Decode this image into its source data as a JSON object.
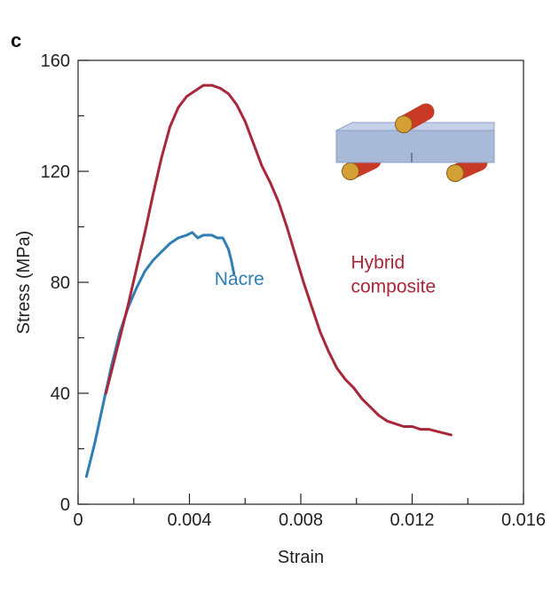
{
  "panel_label": "c",
  "colors": {
    "nacre": "#2f7fb5",
    "hybrid": "#a8283a",
    "axis": "#222222",
    "beam": "#a9b9d8",
    "beam_edge": "#8ea0c6",
    "roller": "#c83a26",
    "roller_end": "#d4a035"
  },
  "inset": {
    "icon": "three-point-bend-test-icon"
  },
  "chart_data": {
    "type": "line",
    "xlabel": "Strain",
    "ylabel": "Stress (MPa)",
    "xlim": [
      0,
      0.016
    ],
    "ylim": [
      0,
      160
    ],
    "x_ticks": [
      0,
      0.004,
      0.008,
      0.012,
      0.016
    ],
    "x_tick_labels": [
      "0",
      "0.004",
      "0.008",
      "0.012",
      "0.016"
    ],
    "y_ticks": [
      0,
      40,
      80,
      120,
      160
    ],
    "y_tick_labels": [
      "0",
      "40",
      "80",
      "120",
      "160"
    ],
    "grid": false,
    "series": [
      {
        "name": "Nacre",
        "color": "#2f7fb5",
        "label_anchor": [
          0.0049,
          79
        ],
        "points": [
          [
            0.0003,
            10
          ],
          [
            0.0006,
            22
          ],
          [
            0.0009,
            36
          ],
          [
            0.0012,
            50
          ],
          [
            0.0015,
            62
          ],
          [
            0.0018,
            71
          ],
          [
            0.0021,
            78
          ],
          [
            0.0024,
            84
          ],
          [
            0.0027,
            88
          ],
          [
            0.003,
            91
          ],
          [
            0.0033,
            94
          ],
          [
            0.0036,
            96
          ],
          [
            0.0039,
            97
          ],
          [
            0.0041,
            98
          ],
          [
            0.0043,
            96
          ],
          [
            0.0045,
            97
          ],
          [
            0.0048,
            97
          ],
          [
            0.005,
            96
          ],
          [
            0.0052,
            96
          ],
          [
            0.0054,
            92
          ],
          [
            0.0055,
            88
          ],
          [
            0.0056,
            83
          ]
        ]
      },
      {
        "name": "Hybrid composite",
        "label_lines": [
          "Hybrid",
          "composite"
        ],
        "color": "#a8283a",
        "label_anchor": [
          0.0098,
          85
        ],
        "points": [
          [
            0.001,
            40
          ],
          [
            0.0012,
            48
          ],
          [
            0.0015,
            60
          ],
          [
            0.0018,
            72
          ],
          [
            0.0021,
            85
          ],
          [
            0.0024,
            98
          ],
          [
            0.0027,
            112
          ],
          [
            0.003,
            125
          ],
          [
            0.0033,
            136
          ],
          [
            0.0036,
            143
          ],
          [
            0.0039,
            147
          ],
          [
            0.0042,
            149
          ],
          [
            0.0045,
            151
          ],
          [
            0.0048,
            151
          ],
          [
            0.0051,
            150
          ],
          [
            0.0054,
            148
          ],
          [
            0.0057,
            144
          ],
          [
            0.006,
            138
          ],
          [
            0.0063,
            130
          ],
          [
            0.0066,
            122
          ],
          [
            0.0069,
            116
          ],
          [
            0.0072,
            109
          ],
          [
            0.0075,
            100
          ],
          [
            0.0078,
            90
          ],
          [
            0.0081,
            80
          ],
          [
            0.0084,
            71
          ],
          [
            0.0087,
            62
          ],
          [
            0.009,
            55
          ],
          [
            0.0093,
            49
          ],
          [
            0.0096,
            45
          ],
          [
            0.0099,
            42
          ],
          [
            0.0102,
            38
          ],
          [
            0.0105,
            35
          ],
          [
            0.0108,
            32
          ],
          [
            0.0111,
            30
          ],
          [
            0.0114,
            29
          ],
          [
            0.0117,
            28
          ],
          [
            0.012,
            28
          ],
          [
            0.0123,
            27
          ],
          [
            0.0126,
            27
          ],
          [
            0.013,
            26
          ],
          [
            0.0134,
            25
          ]
        ]
      }
    ]
  }
}
